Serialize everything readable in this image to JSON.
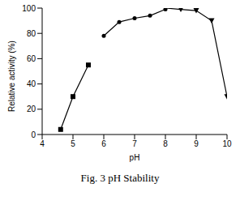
{
  "chart_data": {
    "type": "line",
    "title": "Fig. 3 pH Stability",
    "x_label": "pH",
    "y_label": "Relative activity (%)",
    "xlim": [
      4,
      10
    ],
    "xticks": [
      4,
      5,
      6,
      7,
      8,
      9,
      10
    ],
    "ylim": [
      0,
      100
    ],
    "yticks": [
      0,
      20,
      40,
      60,
      80,
      100
    ],
    "grid": false,
    "series": [
      {
        "color": "#000000",
        "marker": "square",
        "x": [
          4.6,
          5.0,
          5.5
        ],
        "values": [
          4,
          30,
          55
        ]
      },
      {
        "color": "#000000",
        "marker": "circle",
        "x": [
          6.0,
          6.5,
          7.0,
          7.5,
          8.0
        ],
        "values": [
          78,
          89,
          92,
          94,
          99
        ]
      },
      {
        "color": "#000000",
        "marker": "triangle",
        "x": [
          8.0,
          8.5,
          9.0,
          9.5,
          10.0
        ],
        "values": [
          100,
          99,
          98,
          90,
          30
        ]
      }
    ]
  }
}
